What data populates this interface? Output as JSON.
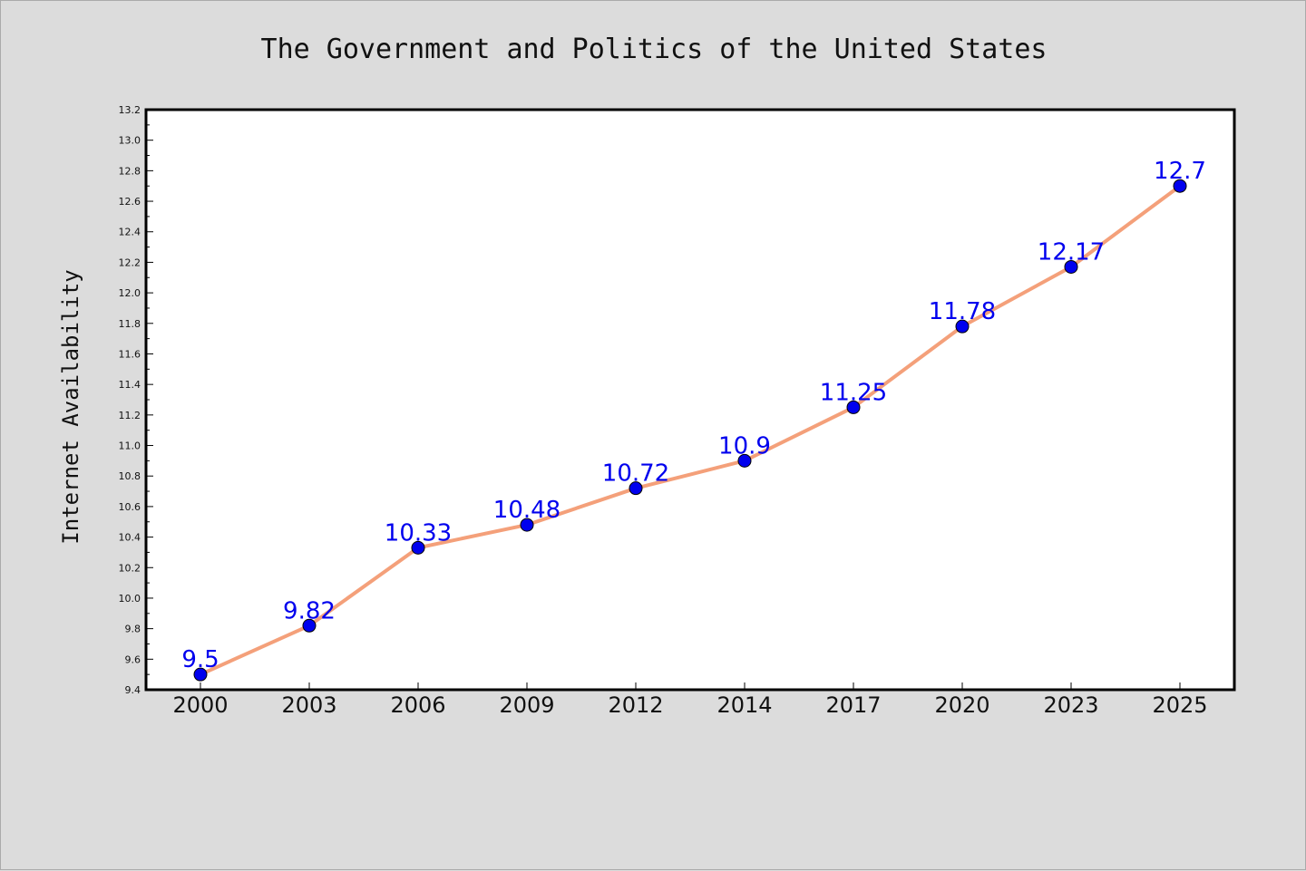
{
  "chart_data": {
    "type": "line",
    "title": "The Government and Politics of the United States",
    "xlabel": "",
    "ylabel": "Internet Availability",
    "categories": [
      "2000",
      "2003",
      "2006",
      "2009",
      "2012",
      "2014",
      "2017",
      "2020",
      "2023",
      "2025"
    ],
    "series": [
      {
        "values": [
          9.5,
          9.82,
          10.33,
          10.48,
          10.72,
          10.9,
          11.25,
          11.78,
          12.17,
          12.7
        ],
        "labels": [
          "9.5",
          "9.82",
          "10.33",
          "10.48",
          "10.72",
          "10.9",
          "11.25",
          "11.78",
          "12.17",
          "12.7"
        ],
        "line_color": "#f4a07a",
        "marker_color": "#0000ee",
        "label_color": "#0000ee"
      }
    ],
    "ylim": [
      9.4,
      13.2
    ],
    "yticks": [
      "9.4",
      "9.6",
      "9.8",
      "10.0",
      "10.2",
      "10.4",
      "10.6",
      "10.8",
      "11.0",
      "11.2",
      "11.4",
      "11.6",
      "11.8",
      "12.0",
      "12.2",
      "12.4",
      "12.6",
      "12.8",
      "13.0",
      "13.2"
    ],
    "grid": false,
    "legend": "none"
  }
}
